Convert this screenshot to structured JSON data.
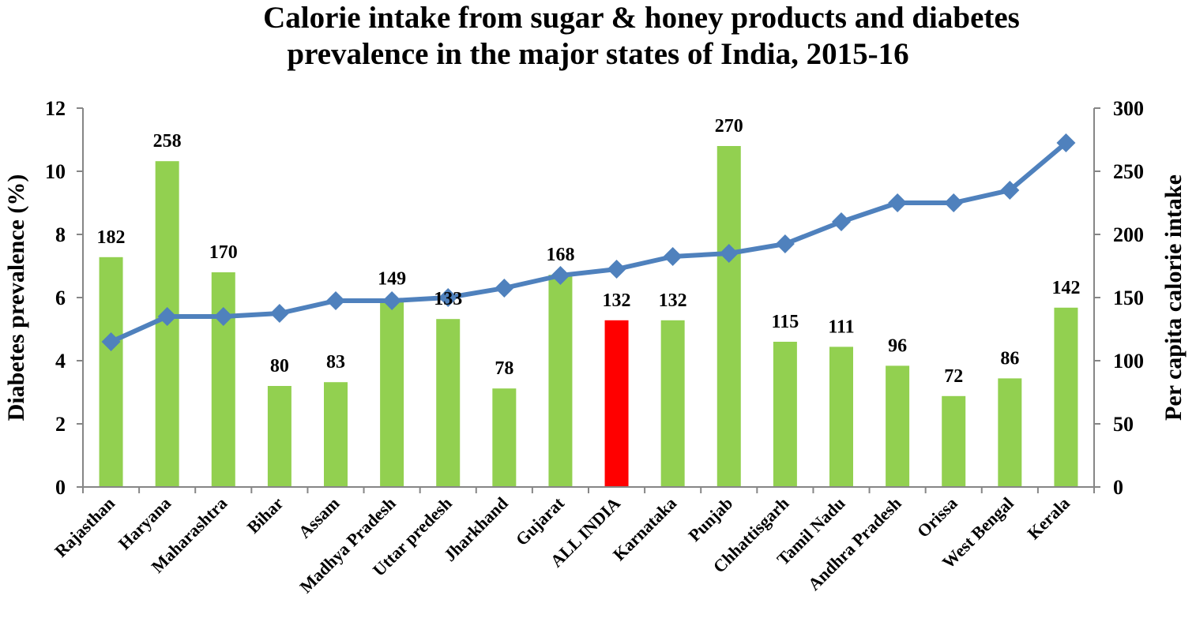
{
  "chart_data": {
    "type": "bar",
    "title_line1": "Calorie intake from sugar & honey products and diabetes",
    "title_line2": "prevalence in the major states of India, 2015-16",
    "ylabel_left": "Diabetes prevalence (%)",
    "ylabel_right": "Per capita calorie intake",
    "ylim_left": [
      0,
      12
    ],
    "ylim_right": [
      0,
      300
    ],
    "yticks_left": [
      "0",
      "2",
      "4",
      "6",
      "8",
      "10",
      "12"
    ],
    "yticks_right": [
      "0",
      "50",
      "100",
      "150",
      "200",
      "250",
      "300"
    ],
    "categories": [
      "Rajasthan",
      "Haryana",
      "Maharashtra",
      "Bihar",
      "Assam",
      "Madhya Pradesh",
      "Uttar predesh",
      "Jharkhand",
      "Gujarat",
      "ALL INDIA",
      "Karnataka",
      "Punjab",
      "Chhattisgarh",
      "Tamil Nadu",
      "Andhra Pradesh",
      "Orissa",
      "West Bengal",
      "Kerala"
    ],
    "series": [
      {
        "type": "bar",
        "axis": "right",
        "values": [
          182,
          258,
          170,
          80,
          83,
          149,
          133,
          78,
          168,
          132,
          132,
          270,
          115,
          111,
          96,
          72,
          86,
          142
        ],
        "data_labels": [
          "182",
          "258",
          "170",
          "80",
          "83",
          "149",
          "133",
          "78",
          "168",
          "132",
          "132",
          "270",
          "115",
          "111",
          "96",
          "72",
          "86",
          "142"
        ],
        "color": "#92d050",
        "highlight_index": 9,
        "highlight_color": "#ff0000"
      },
      {
        "type": "line",
        "axis": "left",
        "values": [
          4.6,
          5.4,
          5.4,
          5.5,
          5.9,
          5.9,
          6.0,
          6.3,
          6.7,
          6.9,
          7.3,
          7.4,
          7.7,
          8.4,
          9.0,
          9.0,
          9.4,
          10.9
        ],
        "color": "#4f81bd",
        "marker": "diamond"
      }
    ],
    "axis_color": "#868686",
    "grid": false
  }
}
